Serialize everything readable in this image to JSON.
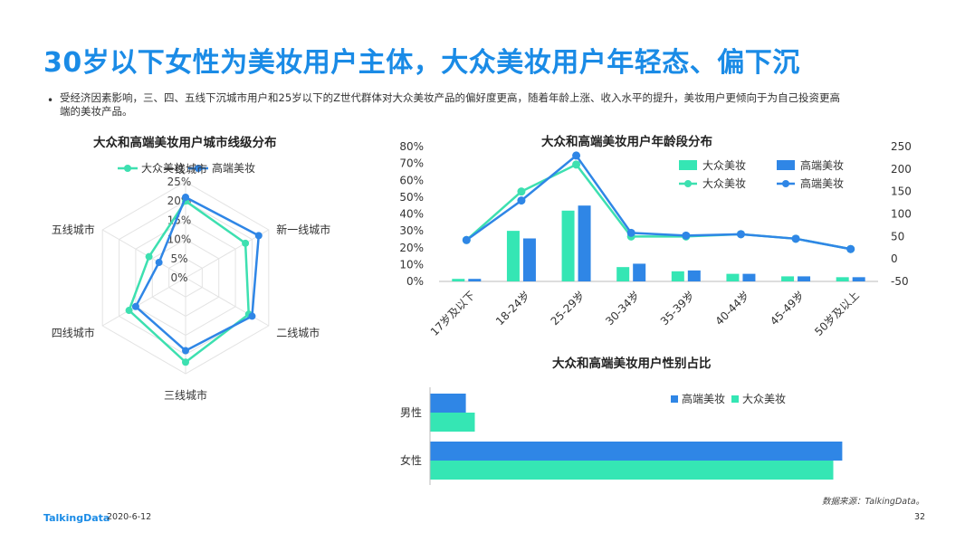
{
  "slide": {
    "title": "30岁以下女性为美妆用户主体，大众美妆用户年轻态、偏下沉",
    "bullet_line1": "受经济因素影响，三、四、五线下沉城市用户和25岁以下的Z世代群体对大众美妆产品的偏好度更高，随着年龄上涨、收入水平的提升，美妆用户更倾向于为自己投资更高",
    "bullet_line2": "端的美妆产品。",
    "source": "数据来源：TalkingData。",
    "footer_logo": "TalkingData",
    "footer_date": "2020-6-12",
    "page_number": "32"
  },
  "colors": {
    "mass": "#35e6b4",
    "mass_line": "#3de0b0",
    "premium": "#2f86e6",
    "title": "#1a8be6"
  },
  "chart_data": [
    {
      "type": "radar",
      "title": "大众和高端美妆用户城市线级分布",
      "axes": [
        "一线城市",
        "新一线城市",
        "二线城市",
        "三线城市",
        "四线城市",
        "五线城市"
      ],
      "radial_ticks": [
        "0%",
        "5%",
        "10%",
        "15%",
        "20%",
        "25%"
      ],
      "rmax": 25,
      "legend_position": "top",
      "series": [
        {
          "name": "大众美妆",
          "values": [
            20,
            18,
            19,
            22,
            17,
            11
          ]
        },
        {
          "name": "高端美妆",
          "values": [
            21,
            22,
            20,
            19,
            15,
            8
          ]
        }
      ]
    },
    {
      "type": "bar+line",
      "title": "大众和高端美妆用户年龄段分布",
      "categories": [
        "17岁及以下",
        "18-24岁",
        "25-29岁",
        "30-34岁",
        "35-39岁",
        "40-44岁",
        "45-49岁",
        "50岁及以上"
      ],
      "left_axis_ticks": [
        "0%",
        "10%",
        "20%",
        "30%",
        "40%",
        "50%",
        "60%",
        "70%",
        "80%"
      ],
      "right_axis_ticks": [
        "-50",
        "0",
        "50",
        "100",
        "150",
        "200",
        "250"
      ],
      "left_range": [
        0,
        80
      ],
      "right_range": [
        -50,
        250
      ],
      "legend_position": "top-right",
      "bar_series": [
        {
          "name": "大众美妆",
          "values": [
            1.5,
            30,
            42,
            8.5,
            6,
            4.5,
            3,
            2.5
          ]
        },
        {
          "name": "高端美妆",
          "values": [
            1.5,
            25.5,
            45,
            10.5,
            6.5,
            4.5,
            3,
            2.5
          ]
        }
      ],
      "line_series": [
        {
          "name": "大众美妆",
          "values": [
            42,
            150,
            210,
            50,
            50,
            55,
            45,
            22
          ]
        },
        {
          "name": "高端美妆",
          "values": [
            42,
            130,
            230,
            58,
            52,
            55,
            45,
            22
          ]
        }
      ]
    },
    {
      "type": "horizontal-bar",
      "title": "大众和高端美妆用户性别占比",
      "categories": [
        "男性",
        "女性"
      ],
      "legend_position": "top-right",
      "series": [
        {
          "name": "高端美妆",
          "values": [
            8,
            92
          ]
        },
        {
          "name": "大众美妆",
          "values": [
            10,
            90
          ]
        }
      ]
    }
  ]
}
